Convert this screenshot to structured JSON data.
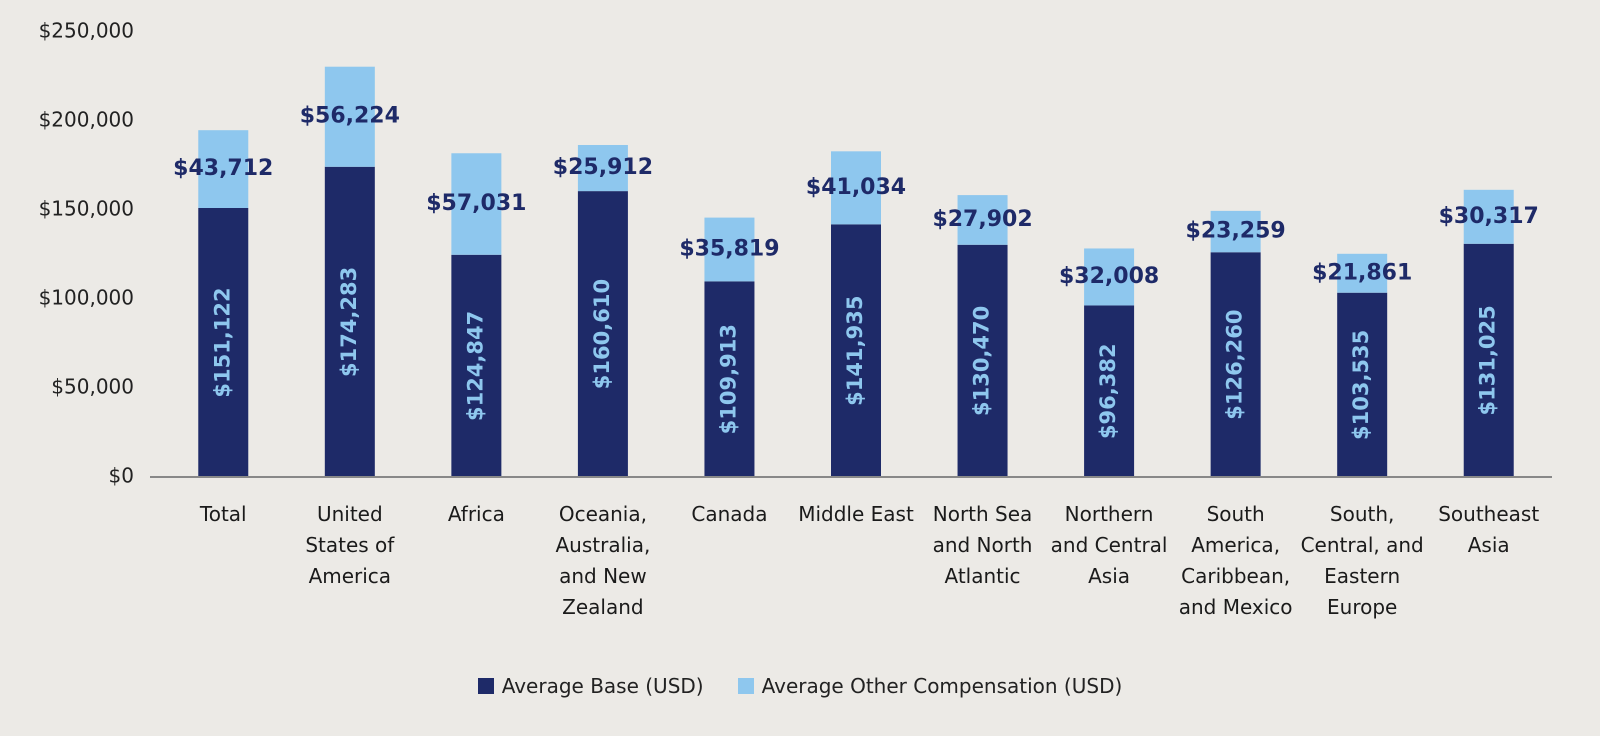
{
  "chart_data": {
    "type": "stacked-bar",
    "categories": [
      "Total",
      "United States of America",
      "Africa",
      "Oceania, Australia, and New Zealand",
      "Canada",
      "Middle East",
      "North Sea and North Atlantic",
      "Northern and Central Asia",
      "South America, Caribbean, and Mexico",
      "South, Central, and Eastern Europe",
      "Southeast Asia"
    ],
    "series": [
      {
        "name": "Average Base (USD)",
        "color": "#1e2a68",
        "values": [
          151122,
          174283,
          124847,
          160610,
          109913,
          141935,
          130470,
          96382,
          126260,
          103535,
          131025
        ],
        "value_labels": [
          "$151,122",
          "$174,283",
          "$124,847",
          "$160,610",
          "$109,913",
          "$141,935",
          "$130,470",
          "$96,382",
          "$126,260",
          "$103,535",
          "$131,025"
        ]
      },
      {
        "name": "Average Other Compensation (USD)",
        "color": "#8ec7ee",
        "values": [
          43712,
          56224,
          57031,
          25912,
          35819,
          41034,
          27902,
          32008,
          23259,
          21861,
          30317
        ],
        "value_labels": [
          "$43,712",
          "$56,224",
          "$57,031",
          "$25,912",
          "$35,819",
          "$41,034",
          "$27,902",
          "$32,008",
          "$23,259",
          "$21,861",
          "$30,317"
        ]
      }
    ],
    "ylim": [
      0,
      250000
    ],
    "yticks": [
      {
        "value": 0,
        "label": "$0"
      },
      {
        "value": 50000,
        "label": "$50,000"
      },
      {
        "value": 100000,
        "label": "$100,000"
      },
      {
        "value": 150000,
        "label": "$150,000"
      },
      {
        "value": 200000,
        "label": "$200,000"
      },
      {
        "value": 250000,
        "label": "$250,000"
      }
    ]
  }
}
